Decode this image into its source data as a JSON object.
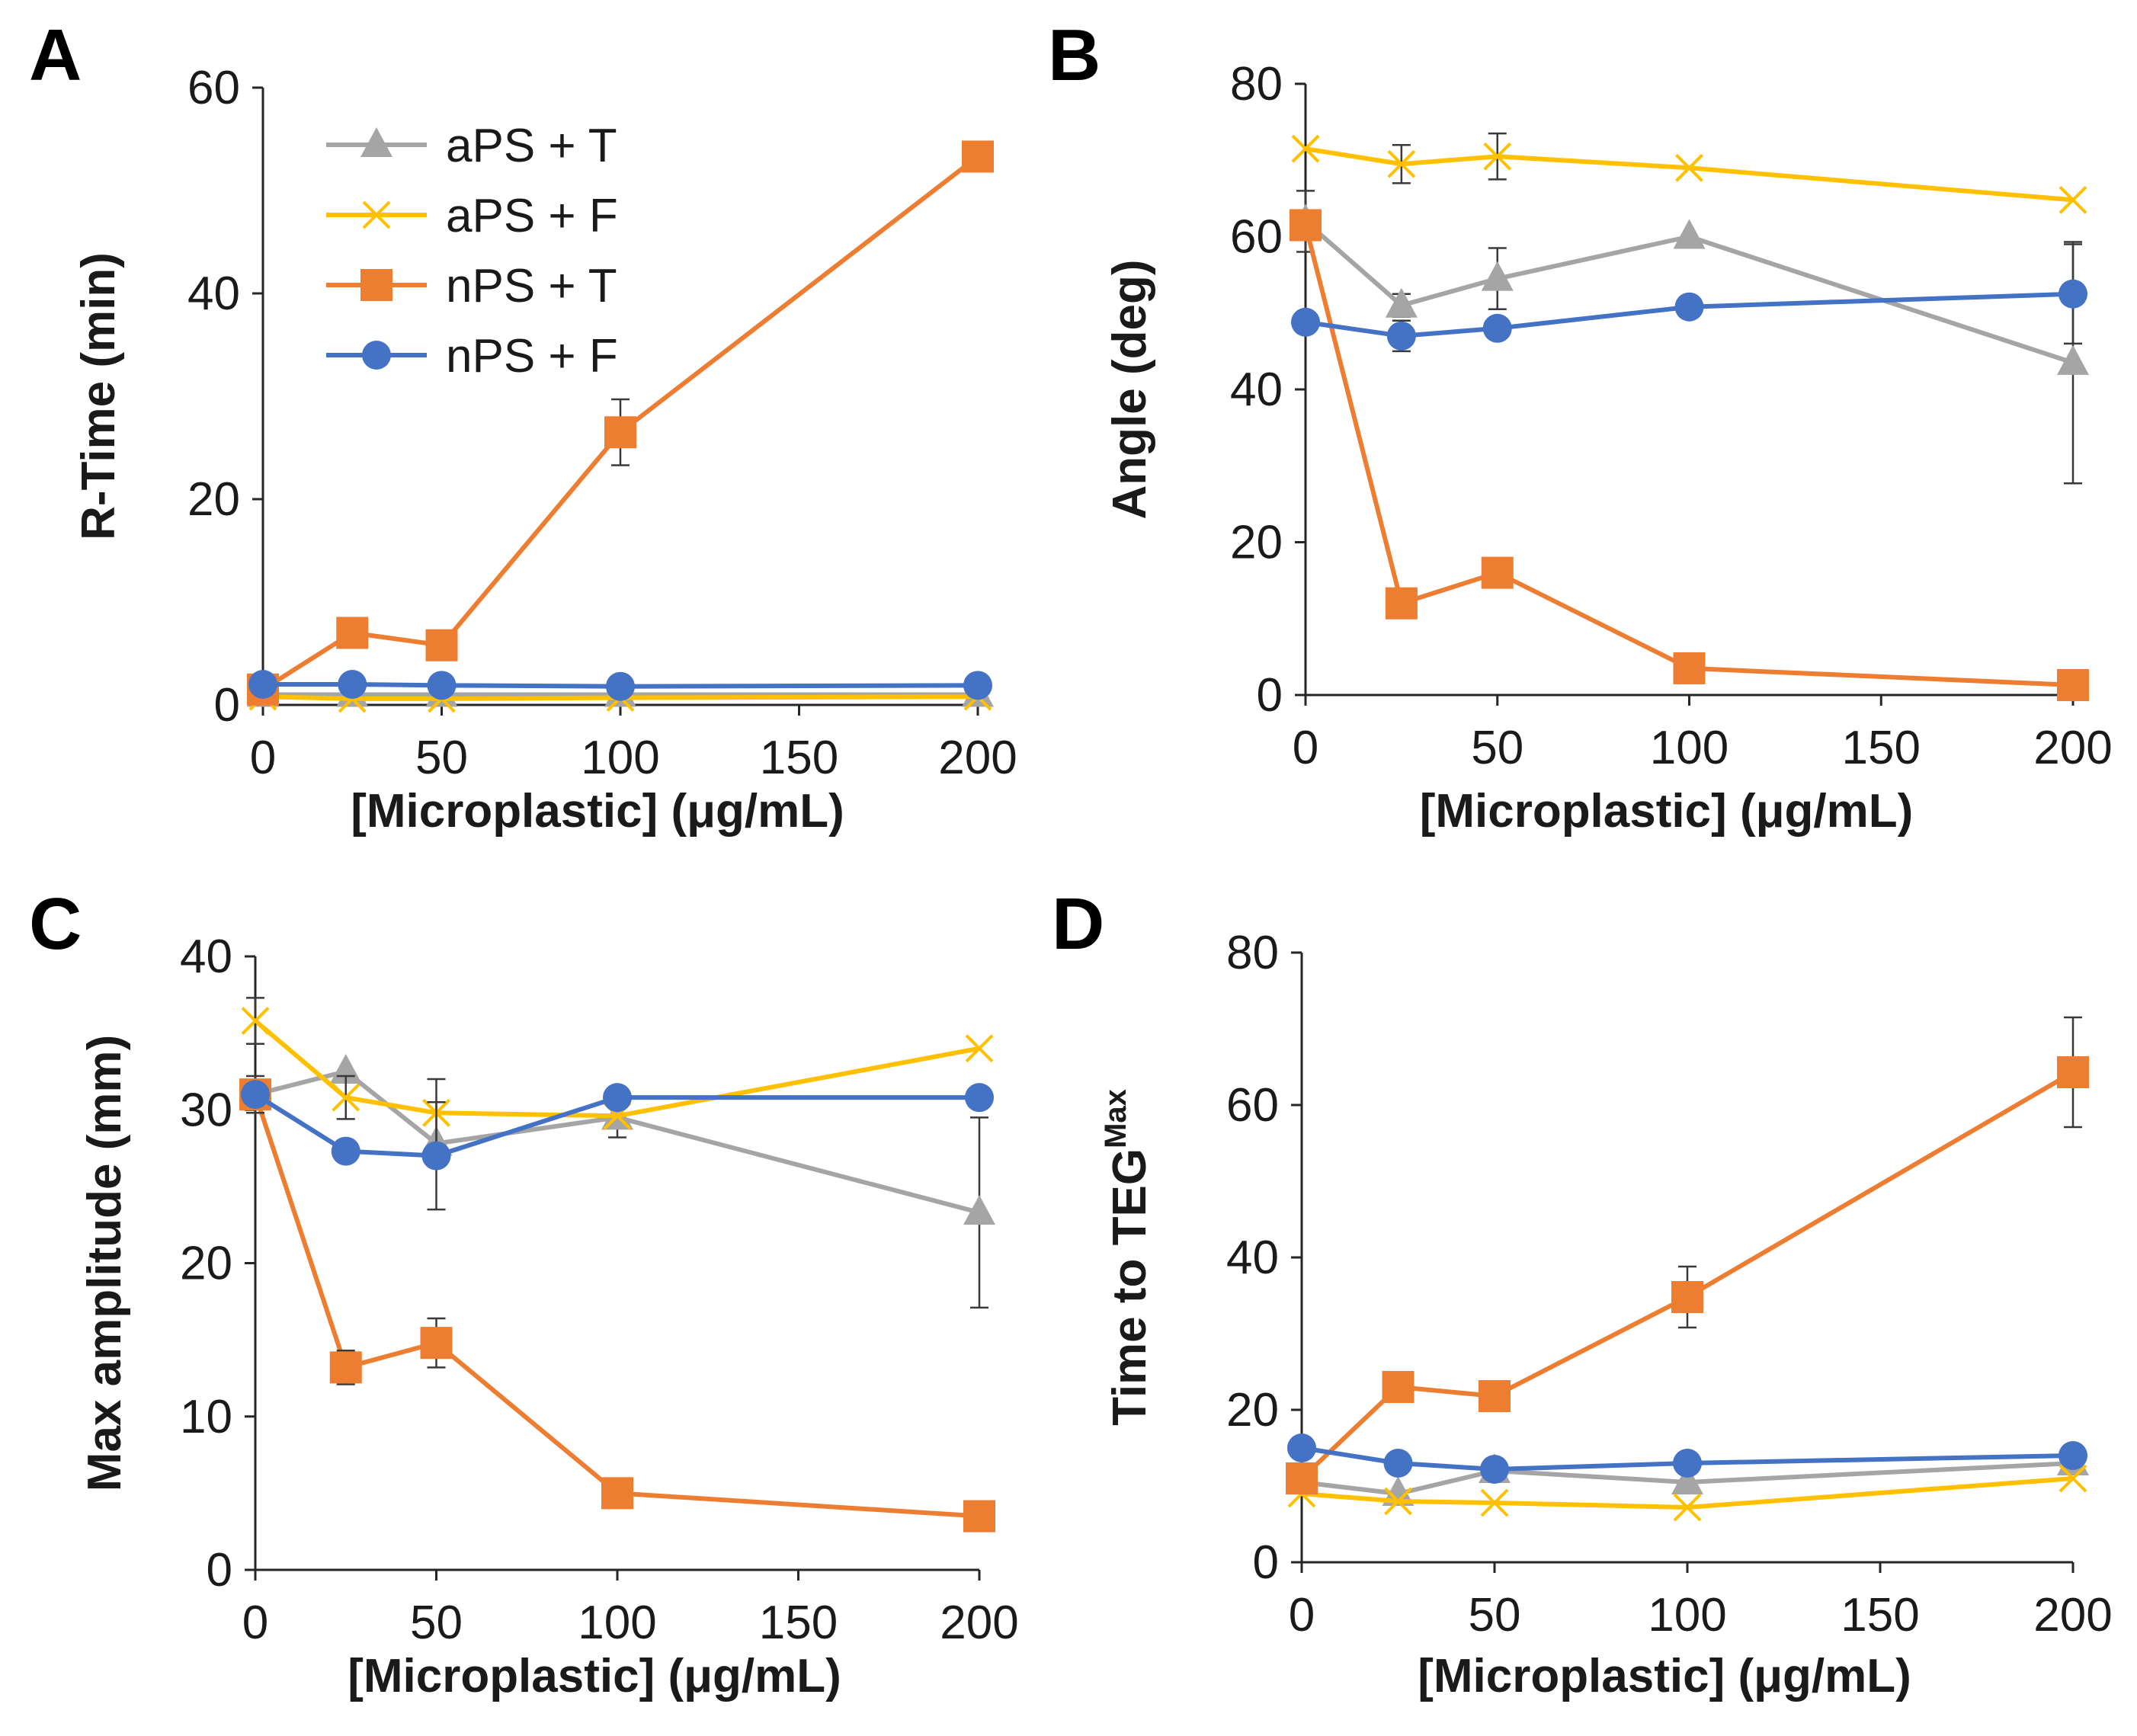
{
  "figure": {
    "x_ticks": [
      "0",
      "50",
      "100",
      "150",
      "200"
    ],
    "legend": [
      {
        "name": "aPS + T",
        "color": "#A5A5A5",
        "marker": "triangle"
      },
      {
        "name": "aPS + F",
        "color": "#FFC000",
        "marker": "x"
      },
      {
        "name": "nPS + T",
        "color": "#ED7D31",
        "marker": "square"
      },
      {
        "name": "nPS + F",
        "color": "#4472C4",
        "marker": "circle"
      }
    ]
  },
  "chart_data": [
    {
      "panel": "A",
      "type": "line",
      "xlabel": "[Microplastic] (μg/mL)",
      "ylabel": "R-Time (min)",
      "xlim": [
        0,
        200
      ],
      "ylim": [
        0,
        60
      ],
      "y_ticks": [
        "0",
        "20",
        "40",
        "60"
      ],
      "x": [
        0,
        25,
        50,
        100,
        200
      ],
      "series": [
        {
          "name": "aPS + T",
          "values": [
            1.0,
            1.0,
            1.0,
            1.0,
            1.0
          ],
          "err": [
            0,
            0,
            0,
            0,
            0
          ]
        },
        {
          "name": "aPS + F",
          "values": [
            0.8,
            0.6,
            0.6,
            0.7,
            0.8
          ],
          "err": [
            0,
            0,
            0,
            0,
            0
          ]
        },
        {
          "name": "nPS + T",
          "values": [
            1.5,
            7.0,
            5.8,
            26.5,
            53.3
          ],
          "err": [
            0,
            0,
            0,
            3.2,
            0
          ]
        },
        {
          "name": "nPS + F",
          "values": [
            2.0,
            2.0,
            1.9,
            1.8,
            1.9
          ],
          "err": [
            0,
            0,
            0,
            0,
            0
          ]
        }
      ]
    },
    {
      "panel": "B",
      "type": "line",
      "xlabel": "[Microplastic] (μg/mL)",
      "ylabel": "Angle (deg)",
      "xlim": [
        0,
        200
      ],
      "ylim": [
        0,
        80
      ],
      "y_ticks": [
        "0",
        "20",
        "40",
        "60",
        "80"
      ],
      "x": [
        0,
        25,
        50,
        100,
        200
      ],
      "series": [
        {
          "name": "aPS + T",
          "values": [
            62.0,
            51.0,
            54.5,
            60.0,
            43.5
          ],
          "err": [
            4.0,
            1.5,
            4.0,
            0,
            15.8
          ]
        },
        {
          "name": "aPS + F",
          "values": [
            71.5,
            69.5,
            70.5,
            69.0,
            64.8
          ],
          "err": [
            0,
            2.5,
            3.0,
            0,
            0
          ]
        },
        {
          "name": "nPS + T",
          "values": [
            61.5,
            12.0,
            16.0,
            3.5,
            1.3
          ],
          "err": [
            0,
            0,
            0,
            0,
            0
          ]
        },
        {
          "name": "nPS + F",
          "values": [
            48.8,
            47.0,
            48.0,
            50.8,
            52.5
          ],
          "err": [
            0,
            2.0,
            0,
            0,
            6.5
          ]
        }
      ]
    },
    {
      "panel": "C",
      "type": "line",
      "xlabel": "[Microplastic] (μg/mL)",
      "ylabel": "Max amplitude (mm)",
      "xlim": [
        0,
        200
      ],
      "ylim": [
        0,
        40
      ],
      "y_ticks": [
        "0",
        "10",
        "20",
        "30",
        "40"
      ],
      "x": [
        0,
        25,
        50,
        100,
        200
      ],
      "series": [
        {
          "name": "aPS + T",
          "values": [
            31.0,
            32.5,
            27.8,
            29.5,
            23.3
          ],
          "err": [
            0,
            0,
            0,
            1.3,
            6.2
          ]
        },
        {
          "name": "aPS + F",
          "values": [
            35.8,
            30.8,
            29.8,
            29.6,
            34.0
          ],
          "err": [
            1.5,
            1.4,
            2.2,
            0,
            0
          ]
        },
        {
          "name": "nPS + T",
          "values": [
            31.0,
            13.2,
            14.8,
            5.0,
            3.5
          ],
          "err": [
            1.2,
            1.1,
            1.6,
            0,
            0
          ]
        },
        {
          "name": "nPS + F",
          "values": [
            31.0,
            27.3,
            27.0,
            30.8,
            30.8
          ],
          "err": [
            0,
            0,
            3.5,
            0,
            0
          ]
        }
      ]
    },
    {
      "panel": "D",
      "type": "line",
      "xlabel": "[Microplastic] (μg/mL)",
      "ylabel": "Time to TEG",
      "ylabel_sup": "Max",
      "xlim": [
        0,
        200
      ],
      "ylim": [
        0,
        80
      ],
      "y_ticks": [
        "0",
        "20",
        "40",
        "60",
        "80"
      ],
      "x": [
        0,
        25,
        50,
        100,
        200
      ],
      "series": [
        {
          "name": "aPS + T",
          "values": [
            10.5,
            9.0,
            12.0,
            10.5,
            13.0
          ],
          "err": [
            0,
            0,
            0,
            0,
            0
          ]
        },
        {
          "name": "aPS + F",
          "values": [
            9.0,
            8.0,
            7.8,
            7.2,
            11.0
          ],
          "err": [
            0,
            0,
            0,
            0,
            0
          ]
        },
        {
          "name": "nPS + T",
          "values": [
            11.0,
            23.0,
            21.8,
            34.8,
            64.3
          ],
          "err": [
            0,
            0,
            0,
            4.0,
            7.2
          ]
        },
        {
          "name": "nPS + F",
          "values": [
            15.0,
            13.0,
            12.2,
            13.0,
            14.0
          ],
          "err": [
            0,
            0,
            0,
            0,
            0
          ]
        }
      ]
    }
  ]
}
